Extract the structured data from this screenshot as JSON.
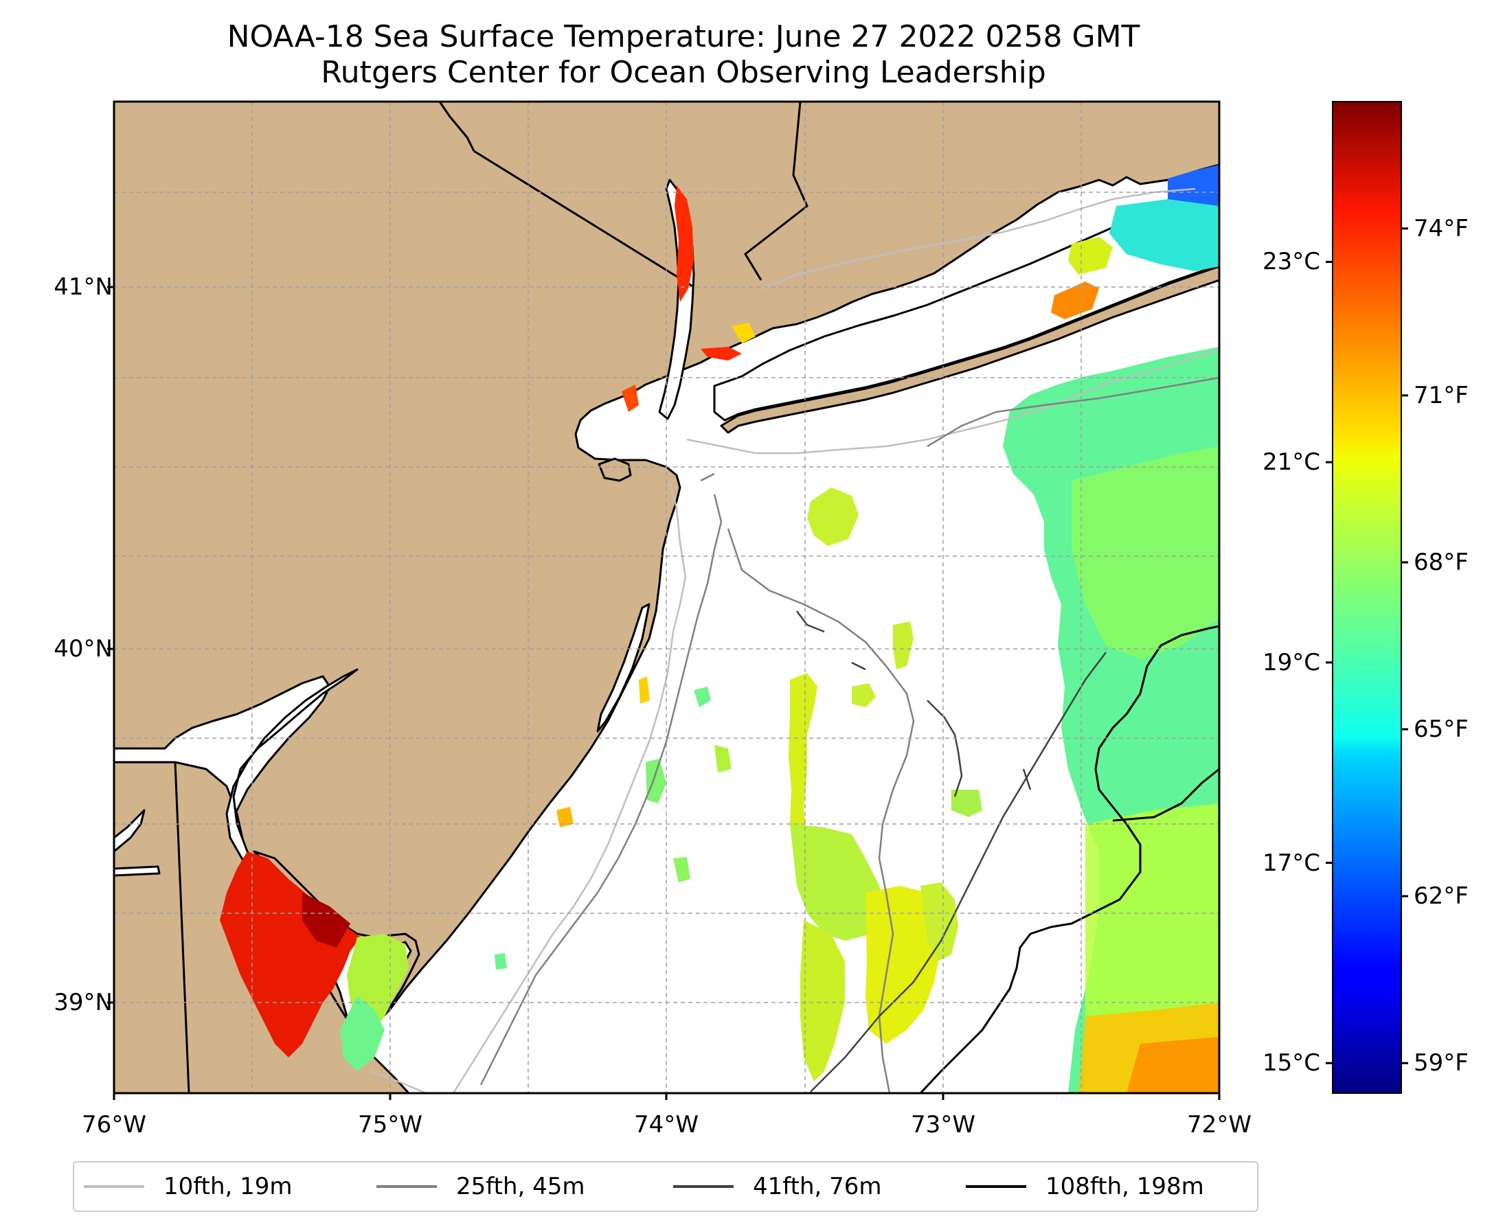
{
  "title": "NOAA-18 Sea Surface Temperature: June 27 2022 0258 GMT",
  "subtitle": "Rutgers Center for Ocean Observing Leadership",
  "map": {
    "lon_range": [
      -76,
      -72
    ],
    "lat_range": [
      38.7,
      41.55
    ],
    "lon_ticks": [
      {
        "value": -76,
        "label": "76°W"
      },
      {
        "value": -75,
        "label": "75°W"
      },
      {
        "value": -74,
        "label": "74°W"
      },
      {
        "value": -73,
        "label": "73°W"
      },
      {
        "value": -72,
        "label": "72°W"
      }
    ],
    "lat_ticks": [
      {
        "value": 41,
        "label": "41°N"
      },
      {
        "value": 40,
        "label": "40°N"
      },
      {
        "value": 39,
        "label": "39°N"
      }
    ],
    "gridlines": true,
    "land_color": "#d2b48c",
    "ocean_color": "#ffffff"
  },
  "colorbar": {
    "colormap": "jet",
    "celsius_range": [
      14.7,
      24.6
    ],
    "celsius_ticks": [
      {
        "value": 15,
        "label": "15°C"
      },
      {
        "value": 17,
        "label": "17°C"
      },
      {
        "value": 19,
        "label": "19°C"
      },
      {
        "value": 21,
        "label": "21°C"
      },
      {
        "value": 23,
        "label": "23°C"
      }
    ],
    "fahrenheit_ticks": [
      {
        "value": 59,
        "label": "59°F"
      },
      {
        "value": 62,
        "label": "62°F"
      },
      {
        "value": 65,
        "label": "65°F"
      },
      {
        "value": 68,
        "label": "68°F"
      },
      {
        "value": 71,
        "label": "71°F"
      },
      {
        "value": 74,
        "label": "74°F"
      }
    ]
  },
  "legend": {
    "placement": "bottom",
    "items": [
      {
        "label": "10fth, 19m",
        "color": "#bfbfbf"
      },
      {
        "label": "25fth, 45m",
        "color": "#808080"
      },
      {
        "label": "41fth, 76m",
        "color": "#404040"
      },
      {
        "label": "108fth, 198m",
        "color": "#000000"
      }
    ]
  }
}
